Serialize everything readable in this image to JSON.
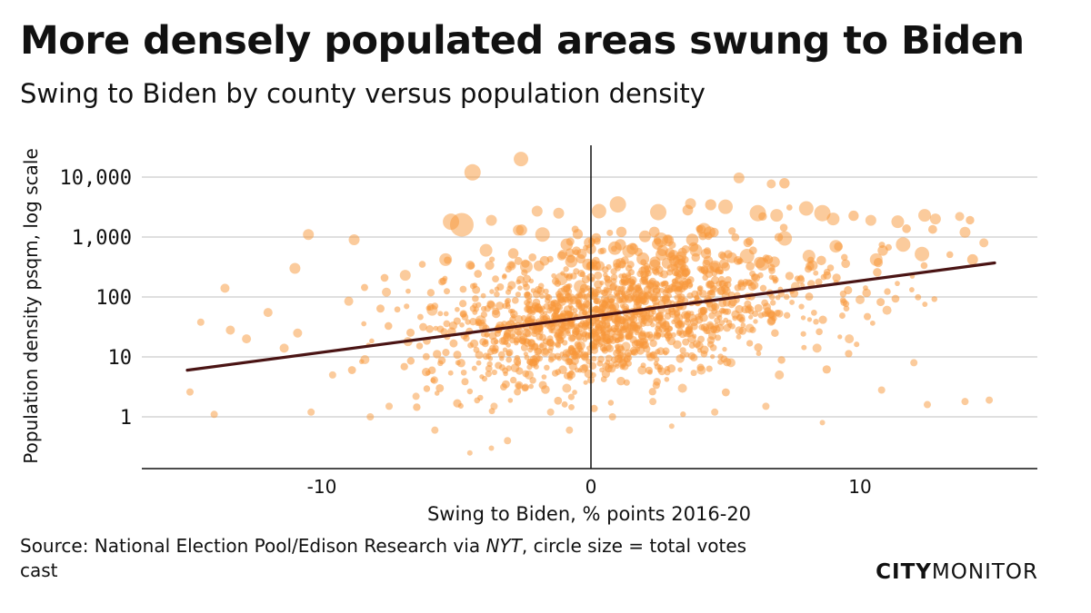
{
  "title": "More densely populated areas swung to Biden",
  "subtitle": "Swing to Biden by county versus population density",
  "source": {
    "prefix": "Source: National Election Pool/Edison Research via ",
    "italic": "NYT",
    "suffix": ", circle size = total votes cast"
  },
  "brand": {
    "part1": "CITY",
    "part2": "MONITOR"
  },
  "colors": {
    "points": "#f7973a",
    "trend": "#4a1414",
    "grid": "#cccccc",
    "axis": "#111111"
  },
  "chart_data": {
    "type": "scatter",
    "xlabel": "Swing to Biden, % points 2016-20",
    "ylabel": "Population density psqm, log scale",
    "x_ticks": [
      {
        "value": -10,
        "label": "-10"
      },
      {
        "value": 0,
        "label": "0"
      },
      {
        "value": 10,
        "label": "10"
      }
    ],
    "y_ticks": [
      {
        "value": 1,
        "label": "1"
      },
      {
        "value": 10,
        "label": "10"
      },
      {
        "value": 100,
        "label": "100"
      },
      {
        "value": 1000,
        "label": "1,000"
      },
      {
        "value": 10000,
        "label": "10,000"
      }
    ],
    "xlim": [
      -16.5,
      16.7
    ],
    "ylim": [
      0.2,
      50000
    ],
    "y_scale": "log",
    "grid": "horizontal",
    "vertical_reference_line_x": 0,
    "trend_line": [
      [
        -15,
        6
      ],
      [
        15,
        370
      ]
    ],
    "points": [
      [
        -4.4,
        12000,
        9
      ],
      [
        -2.6,
        20000,
        8
      ],
      [
        -4.8,
        1600,
        13
      ],
      [
        -5.2,
        1800,
        9
      ],
      [
        -2.0,
        2700,
        6
      ],
      [
        -1.2,
        2500,
        6
      ],
      [
        -3.7,
        1900,
        6
      ],
      [
        -2.7,
        1300,
        6
      ],
      [
        -1.8,
        1100,
        8
      ],
      [
        -10.5,
        1100,
        6
      ],
      [
        -8.8,
        900,
        6
      ],
      [
        -11.0,
        300,
        6
      ],
      [
        -13.6,
        140,
        5
      ],
      [
        -14.5,
        38,
        4
      ],
      [
        -14.9,
        2.6,
        4
      ],
      [
        -14.0,
        1.1,
        4
      ],
      [
        1.0,
        3500,
        9
      ],
      [
        0.3,
        2700,
        8
      ],
      [
        2.5,
        2600,
        9
      ],
      [
        3.7,
        3600,
        6
      ],
      [
        5.0,
        3200,
        8
      ],
      [
        6.2,
        2500,
        9
      ],
      [
        6.9,
        2300,
        7
      ],
      [
        5.5,
        9700,
        6
      ],
      [
        6.7,
        7700,
        5
      ],
      [
        8.0,
        3000,
        8
      ],
      [
        8.6,
        2500,
        9
      ],
      [
        9.0,
        2000,
        7
      ],
      [
        10.4,
        1900,
        6
      ],
      [
        11.4,
        1800,
        7
      ],
      [
        12.4,
        2300,
        7
      ],
      [
        12.8,
        2000,
        6
      ],
      [
        13.7,
        2200,
        5
      ],
      [
        13.9,
        1200,
        6
      ],
      [
        14.6,
        800,
        5
      ],
      [
        12.3,
        520,
        8
      ],
      [
        11.6,
        750,
        8
      ],
      [
        8.1,
        480,
        7
      ],
      [
        7.6,
        150,
        5
      ],
      [
        10.0,
        90,
        5
      ],
      [
        11.0,
        60,
        5
      ],
      [
        12.0,
        8,
        4
      ],
      [
        12.5,
        1.6,
        4
      ],
      [
        13.9,
        1.8,
        4
      ],
      [
        14.8,
        1.9,
        4
      ],
      [
        10.8,
        2.8,
        4
      ],
      [
        9.6,
        20,
        5
      ],
      [
        8.6,
        0.8,
        3
      ],
      [
        6.5,
        1.5,
        4
      ],
      [
        4.6,
        1.2,
        4
      ],
      [
        0.8,
        1.0,
        4
      ],
      [
        -0.8,
        0.6,
        4
      ],
      [
        -3.1,
        0.4,
        4
      ],
      [
        -3.7,
        0.3,
        3
      ],
      [
        -4.5,
        0.25,
        3
      ],
      [
        -5.8,
        0.6,
        4
      ],
      [
        -6.5,
        2.2,
        4
      ],
      [
        -7.5,
        1.5,
        4
      ],
      [
        -8.2,
        1.0,
        4
      ],
      [
        -10.4,
        1.2,
        4
      ],
      [
        -11.4,
        14,
        5
      ],
      [
        -12.8,
        20,
        5
      ],
      [
        -13.4,
        28,
        5
      ],
      [
        -12.0,
        55,
        5
      ],
      [
        -9.0,
        85,
        5
      ],
      [
        -7.6,
        120,
        5
      ],
      [
        -6.9,
        230,
        6
      ],
      [
        -5.4,
        420,
        7
      ],
      [
        -3.9,
        600,
        7
      ],
      [
        -2.4,
        320,
        7
      ],
      [
        -1.1,
        200,
        7
      ],
      [
        -0.4,
        150,
        7
      ],
      [
        1.4,
        580,
        7
      ],
      [
        2.6,
        900,
        8
      ],
      [
        4.2,
        1300,
        8
      ],
      [
        3.9,
        600,
        7
      ],
      [
        5.8,
        480,
        8
      ],
      [
        7.2,
        950,
        8
      ],
      [
        9.1,
        700,
        7
      ],
      [
        10.6,
        420,
        7
      ],
      [
        3.2,
        150,
        6
      ],
      [
        4.5,
        70,
        6
      ],
      [
        5.9,
        30,
        5
      ],
      [
        2.1,
        40,
        6
      ],
      [
        1.3,
        15,
        5
      ],
      [
        -1.7,
        12,
        5
      ],
      [
        -3.0,
        25,
        6
      ],
      [
        -4.1,
        40,
        6
      ],
      [
        -5.9,
        60,
        6
      ],
      [
        -6.8,
        18,
        5
      ],
      [
        -8.4,
        9,
        5
      ],
      [
        -9.6,
        5,
        4
      ],
      [
        -10.9,
        25,
        5
      ],
      [
        -2.3,
        5,
        5
      ],
      [
        -0.9,
        3,
        5
      ],
      [
        1.9,
        6,
        5
      ],
      [
        3.4,
        3,
        5
      ],
      [
        5.2,
        8,
        5
      ],
      [
        7.0,
        5,
        5
      ],
      [
        8.4,
        14,
        5
      ],
      [
        -3.6,
        1.5,
        4
      ],
      [
        -1.5,
        1.2,
        4
      ],
      [
        2.3,
        1.8,
        4
      ],
      [
        3.0,
        0.7,
        3
      ],
      [
        4.1,
        6,
        5
      ]
    ]
  }
}
